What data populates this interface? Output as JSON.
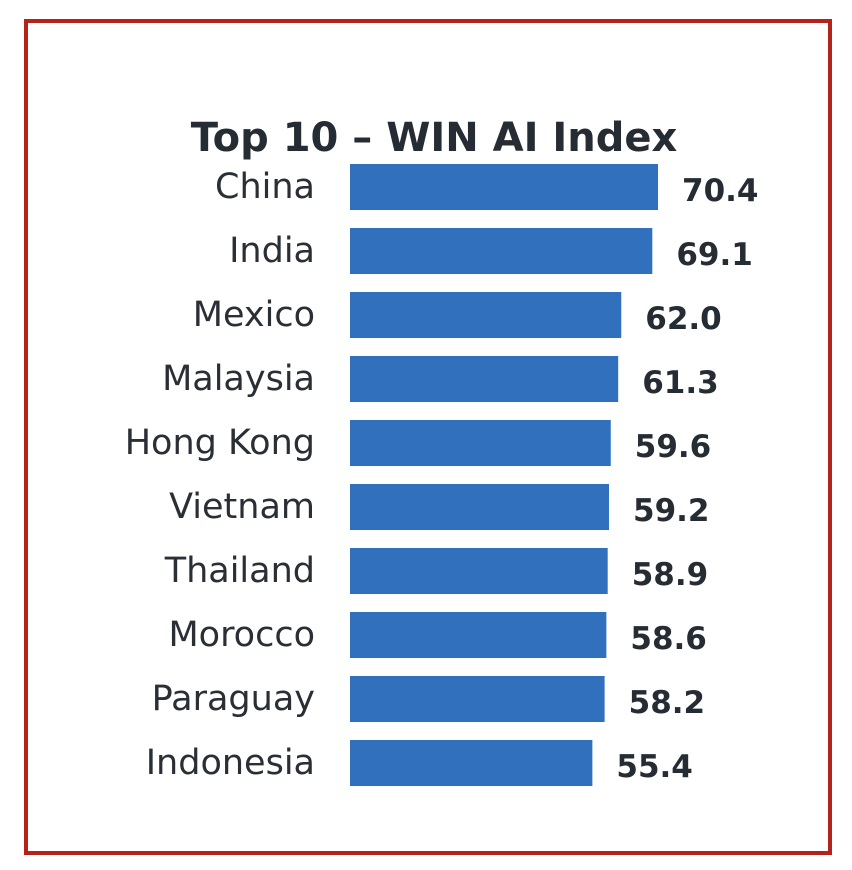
{
  "colors": {
    "frame_border": "#b4231a",
    "bar_fill": "#3170bd",
    "text": "#262c33"
  },
  "chart_data": {
    "type": "bar",
    "orientation": "horizontal",
    "title": "Top 10 – WIN AI Index",
    "categories": [
      "China",
      "India",
      "Mexico",
      "Malaysia",
      "Hong Kong",
      "Vietnam",
      "Thailand",
      "Morocco",
      "Paraguay",
      "Indonesia"
    ],
    "values": [
      70.4,
      69.1,
      62.0,
      61.3,
      59.6,
      59.2,
      58.9,
      58.6,
      58.2,
      55.4
    ],
    "value_labels": [
      "70.4",
      "69.1",
      "62.0",
      "61.3",
      "59.6",
      "59.2",
      "58.9",
      "58.6",
      "58.2",
      "55.4"
    ],
    "xlabel": "",
    "ylabel": "",
    "grid": false,
    "data_labels": "outside-end"
  }
}
